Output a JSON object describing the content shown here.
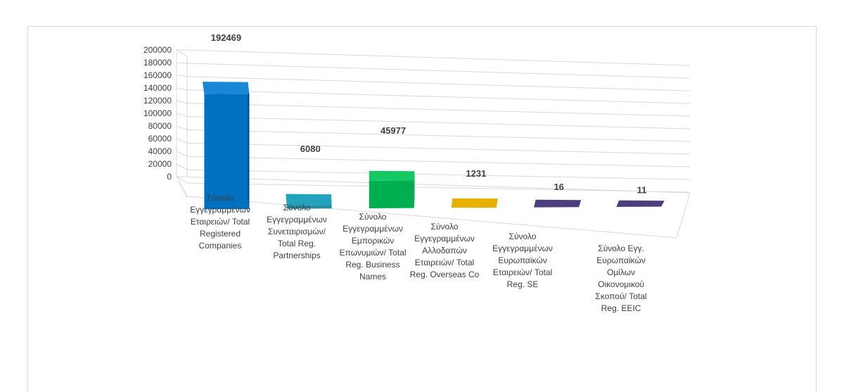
{
  "chart_data": {
    "type": "bar",
    "style": "3d-column",
    "title": "",
    "xlabel": "",
    "ylabel": "",
    "ylim": [
      0,
      200000
    ],
    "yticks": [
      0,
      20000,
      40000,
      60000,
      80000,
      100000,
      120000,
      140000,
      160000,
      180000,
      200000
    ],
    "grid": true,
    "legend": "none",
    "categories": [
      [
        "Σύνολο",
        "Εγγεγραμμένων",
        "Εταιρειών/ Total",
        "Registered",
        "Companies"
      ],
      [
        "Σύνολο",
        "Εγγεγραμμένων",
        "Συνεταιρισμών/",
        "Total Reg.",
        "Partnerships"
      ],
      [
        "Σύνολο",
        "Εγγεγραμμένων",
        "Εμπορικών",
        "Επωνυμιών/ Total",
        "Reg. Business",
        "Names"
      ],
      [
        "Σύνολο",
        "Εγγεγραμμένων",
        "Αλλοδαπών",
        "Εταιρειών/ Total",
        "Reg. Overseas Co"
      ],
      [
        "Σύνολο",
        "Εγγεγραμμένων",
        "Ευρωπαϊκών",
        "Εταιρειών/ Total",
        "Reg. SE"
      ],
      [
        "Σύνολο Εγγ.",
        "Ευρωπαϊκών",
        "Ομίλων",
        "Οικονομικού",
        "Σκοπού/ Total",
        "Reg. EEIC"
      ]
    ],
    "values": [
      192469,
      6080,
      45977,
      1231,
      16,
      11
    ],
    "value_labels": [
      "192469",
      "6080",
      "45977",
      "1231",
      "16",
      "11"
    ],
    "colors": [
      {
        "front": "#0070c0",
        "side": "#00427a",
        "top": "#1a86d6"
      },
      {
        "front": "#1f8fa8",
        "side": "#136577",
        "top": "#23a2bd"
      },
      {
        "front": "#00b050",
        "side": "#007a37",
        "top": "#14c862"
      },
      {
        "front": "#e0a800",
        "side": "#a87c00",
        "top": "#e8b000"
      },
      {
        "front": "#4b3a78",
        "side": "#2f2450",
        "top": "#4f3e7f"
      },
      {
        "front": "#4b3a78",
        "side": "#2f2450",
        "top": "#4f3e7f"
      }
    ]
  }
}
